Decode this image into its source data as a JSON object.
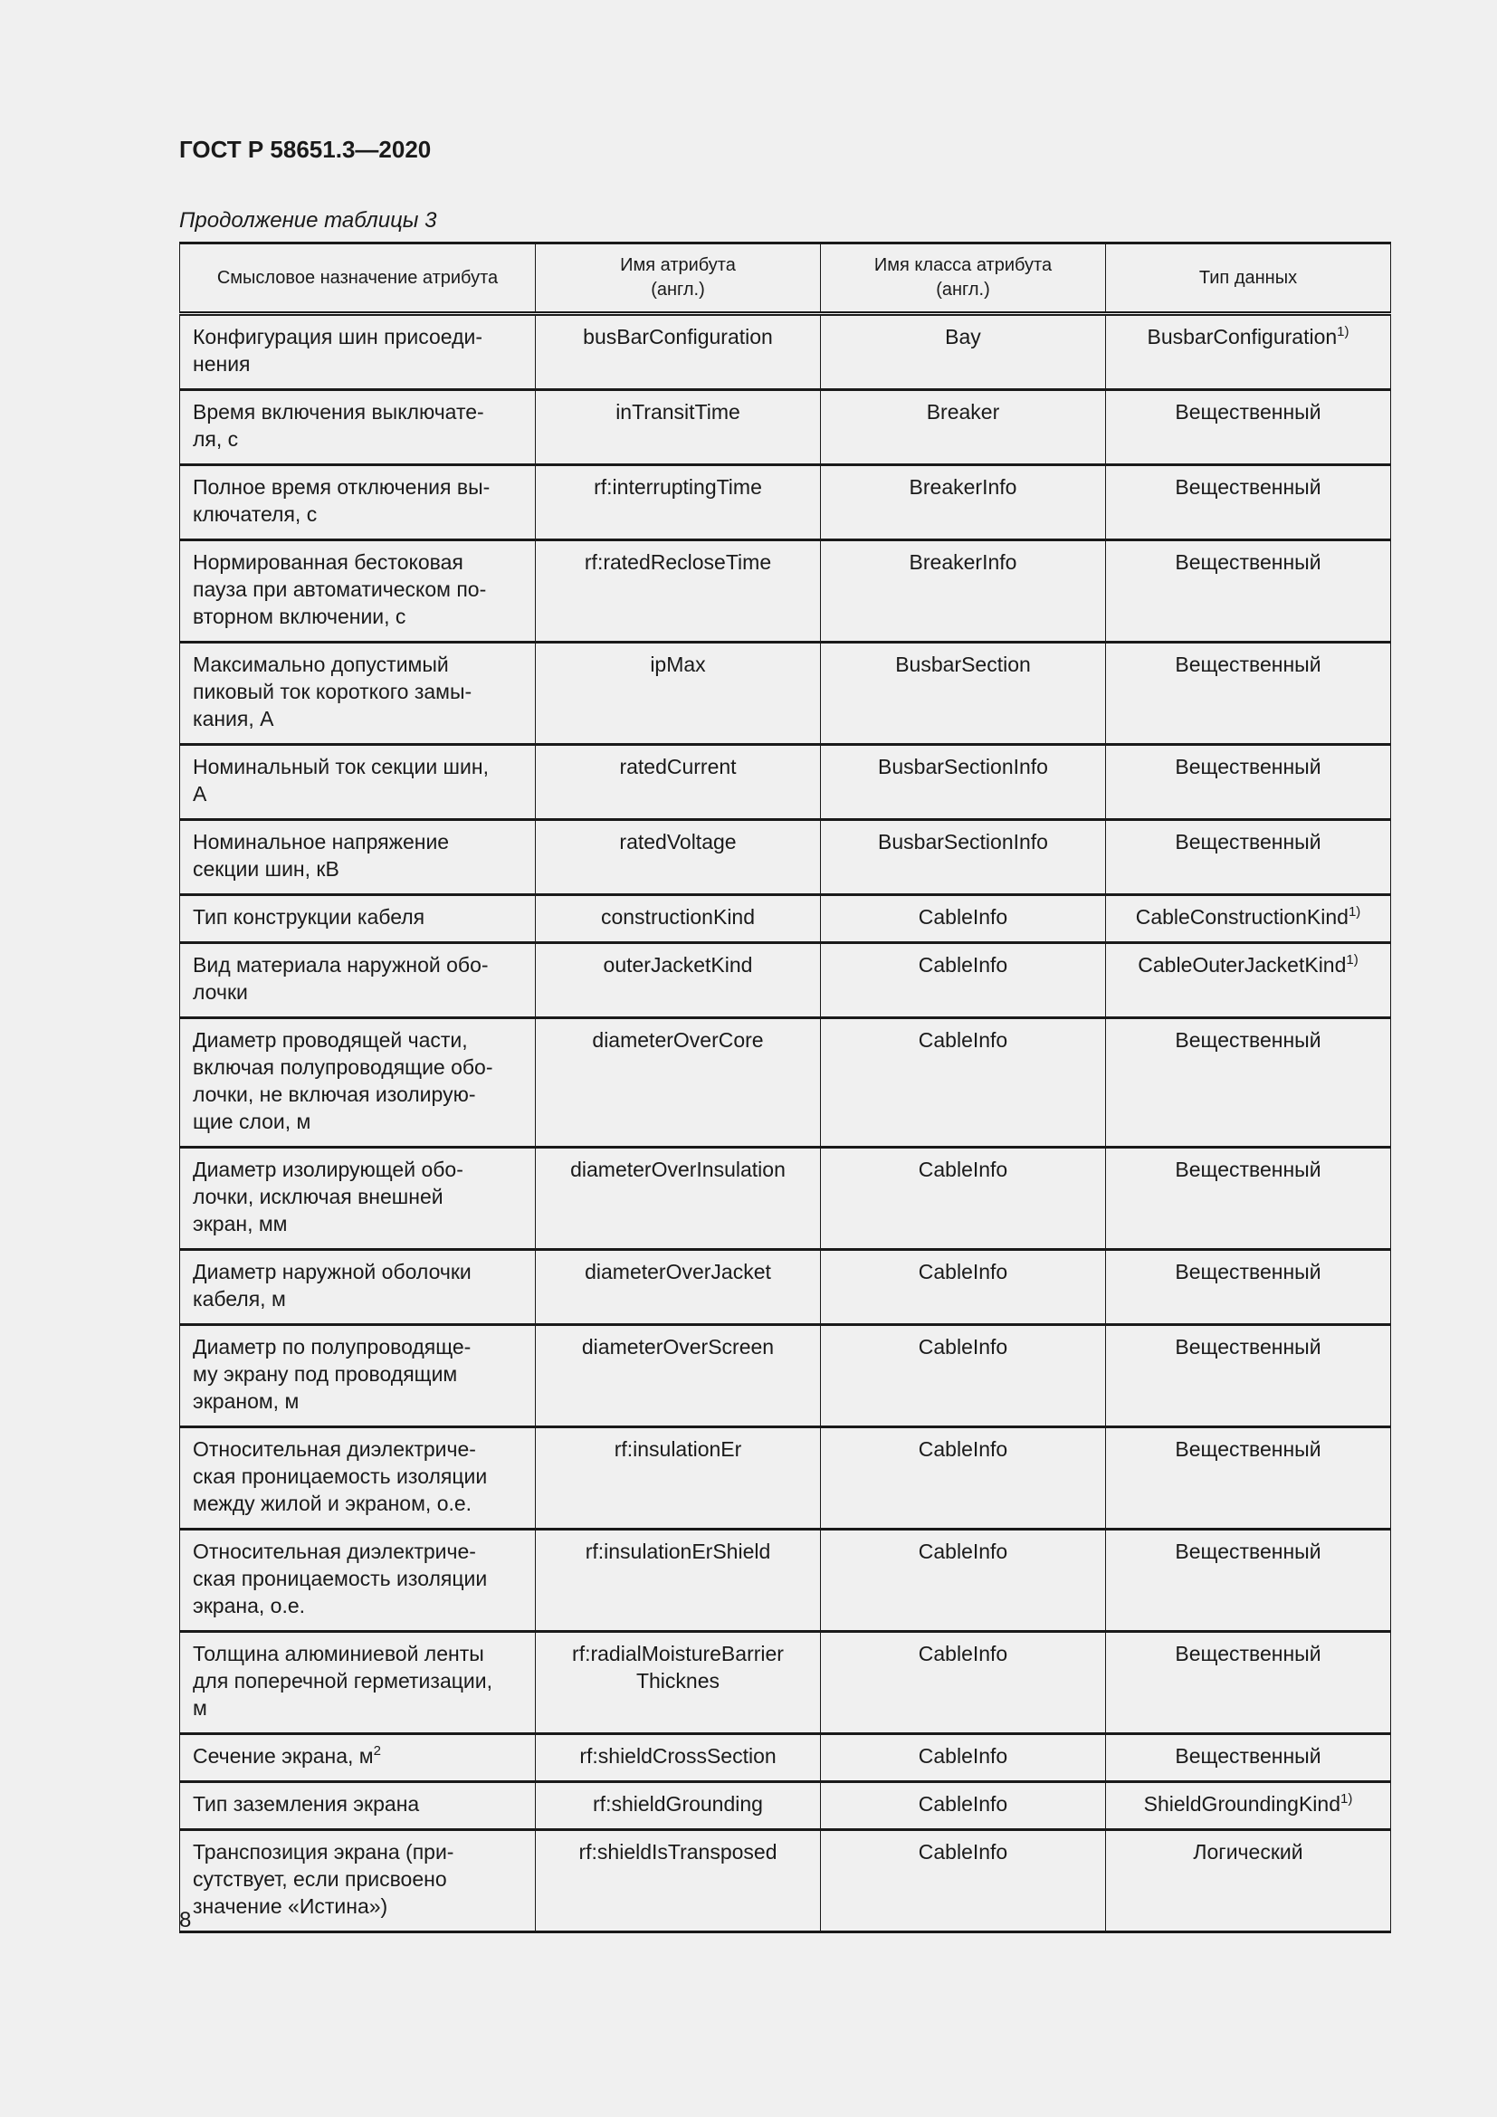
{
  "header": {
    "title": "ГОСТ Р 58651.3—2020",
    "caption": "Продолжение таблицы 3"
  },
  "table": {
    "columns": [
      "Смысловое назначение атрибута",
      "Имя атрибута\n(англ.)",
      "Имя класса атрибута\n(англ.)",
      "Тип данных"
    ],
    "rows": [
      {
        "meaning": "Конфигурация шин присоеди-\nнения",
        "attr": "busBarConfiguration",
        "cls": "Bay",
        "type": "BusbarConfiguration",
        "type_sup": "1)"
      },
      {
        "meaning": "Время включения выключате-\nля, с",
        "attr": "inTransitTime",
        "cls": "Breaker",
        "type": "Вещественный"
      },
      {
        "meaning": "Полное время отключения вы-\nключателя, с",
        "attr": "rf:interruptingTime",
        "cls": "BreakerInfo",
        "type": "Вещественный"
      },
      {
        "meaning": "Нормированная бестоковая\nпауза при автоматическом по-\nвторном включении, с",
        "attr": "rf:ratedRecloseTime",
        "cls": "BreakerInfo",
        "type": "Вещественный"
      },
      {
        "meaning": "Максимально допустимый\nпиковый ток короткого замы-\nкания, А",
        "attr": "ipMax",
        "cls": "BusbarSection",
        "type": "Вещественный"
      },
      {
        "meaning": "Номинальный ток секции шин,\nА",
        "attr": "ratedCurrent",
        "cls": "BusbarSectionInfo",
        "type": "Вещественный"
      },
      {
        "meaning": "Номинальное напряжение\nсекции шин, кВ",
        "attr": "ratedVoltage",
        "cls": "BusbarSectionInfo",
        "type": "Вещественный"
      },
      {
        "meaning": "Тип конструкции кабеля",
        "attr": "constructionKind",
        "cls": "CableInfo",
        "type": "CableConstructionKind",
        "type_sup": "1)"
      },
      {
        "meaning": "Вид материала наружной обо-\nлочки",
        "attr": "outerJacketKind",
        "cls": "CableInfo",
        "type": "CableOuterJacketKind",
        "type_sup": "1)"
      },
      {
        "meaning": "Диаметр проводящей части,\nвключая полупроводящие обо-\nлочки, не включая изолирую-\nщие слои, м",
        "attr": "diameterOverCore",
        "cls": "CableInfo",
        "type": "Вещественный"
      },
      {
        "meaning": "Диаметр изолирующей обо-\nлочки, исключая внешней\nэкран, мм",
        "attr": "diameterOverInsulation",
        "cls": "CableInfo",
        "type": "Вещественный"
      },
      {
        "meaning": "Диаметр наружной оболочки\nкабеля, м",
        "attr": "diameterOverJacket",
        "cls": "CableInfo",
        "type": "Вещественный"
      },
      {
        "meaning": "Диаметр по полупроводяще-\nму экрану под проводящим\nэкраном, м",
        "attr": "diameterOverScreen",
        "cls": "CableInfo",
        "type": "Вещественный"
      },
      {
        "meaning": "Относительная диэлектриче-\nская проницаемость изоляции\nмежду жилой и экраном, о.е.",
        "attr": "rf:insulationEr",
        "cls": "CableInfo",
        "type": "Вещественный"
      },
      {
        "meaning": "Относительная диэлектриче-\nская проницаемость изоляции\nэкрана, о.е.",
        "attr": "rf:insulationErShield",
        "cls": "CableInfo",
        "type": "Вещественный"
      },
      {
        "meaning": "Толщина алюминиевой ленты\nдля поперечной герметизации,\nм",
        "attr": "rf:radialMoistureBarrier\nThicknes",
        "cls": "CableInfo",
        "type": "Вещественный"
      },
      {
        "meaning": "Сечение экрана, м",
        "meaning_sup": "2",
        "attr": "rf:shieldCrossSection",
        "cls": "CableInfo",
        "type": "Вещественный"
      },
      {
        "meaning": "Тип заземления экрана",
        "attr": "rf:shieldGrounding",
        "cls": "CableInfo",
        "type": "ShieldGroundingKind",
        "type_sup": "1)"
      },
      {
        "meaning": "Транспозиция экрана (при-\nсутствует, если присвоено\nзначение «Истина»)",
        "attr": "rf:shieldIsTransposed",
        "cls": "CableInfo",
        "type": "Логический"
      }
    ]
  },
  "footer": {
    "page_number": "8"
  }
}
